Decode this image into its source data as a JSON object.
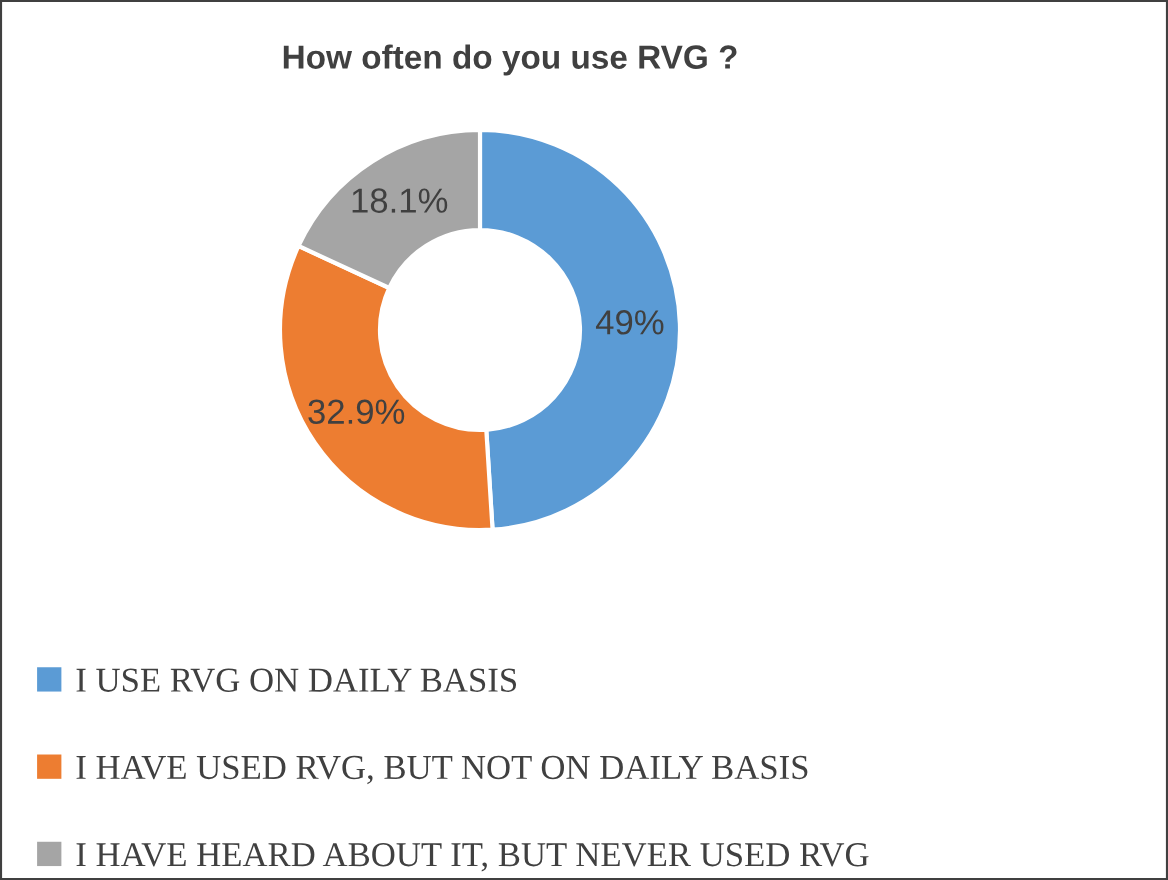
{
  "chart_data": {
    "type": "donut",
    "title": "How often do you use RVG ?",
    "categories": [
      "I USE RVG ON DAILY BASIS",
      "I HAVE USED RVG, BUT NOT ON DAILY BASIS",
      "I HAVE HEARD ABOUT IT, BUT NEVER USED RVG"
    ],
    "values": [
      49,
      32.9,
      18.1
    ],
    "value_labels": [
      "49%",
      "32.9%",
      "18.1%"
    ],
    "colors": [
      "#5b9bd5",
      "#ed7d31",
      "#a5a5a5"
    ],
    "legend": "bottom"
  }
}
